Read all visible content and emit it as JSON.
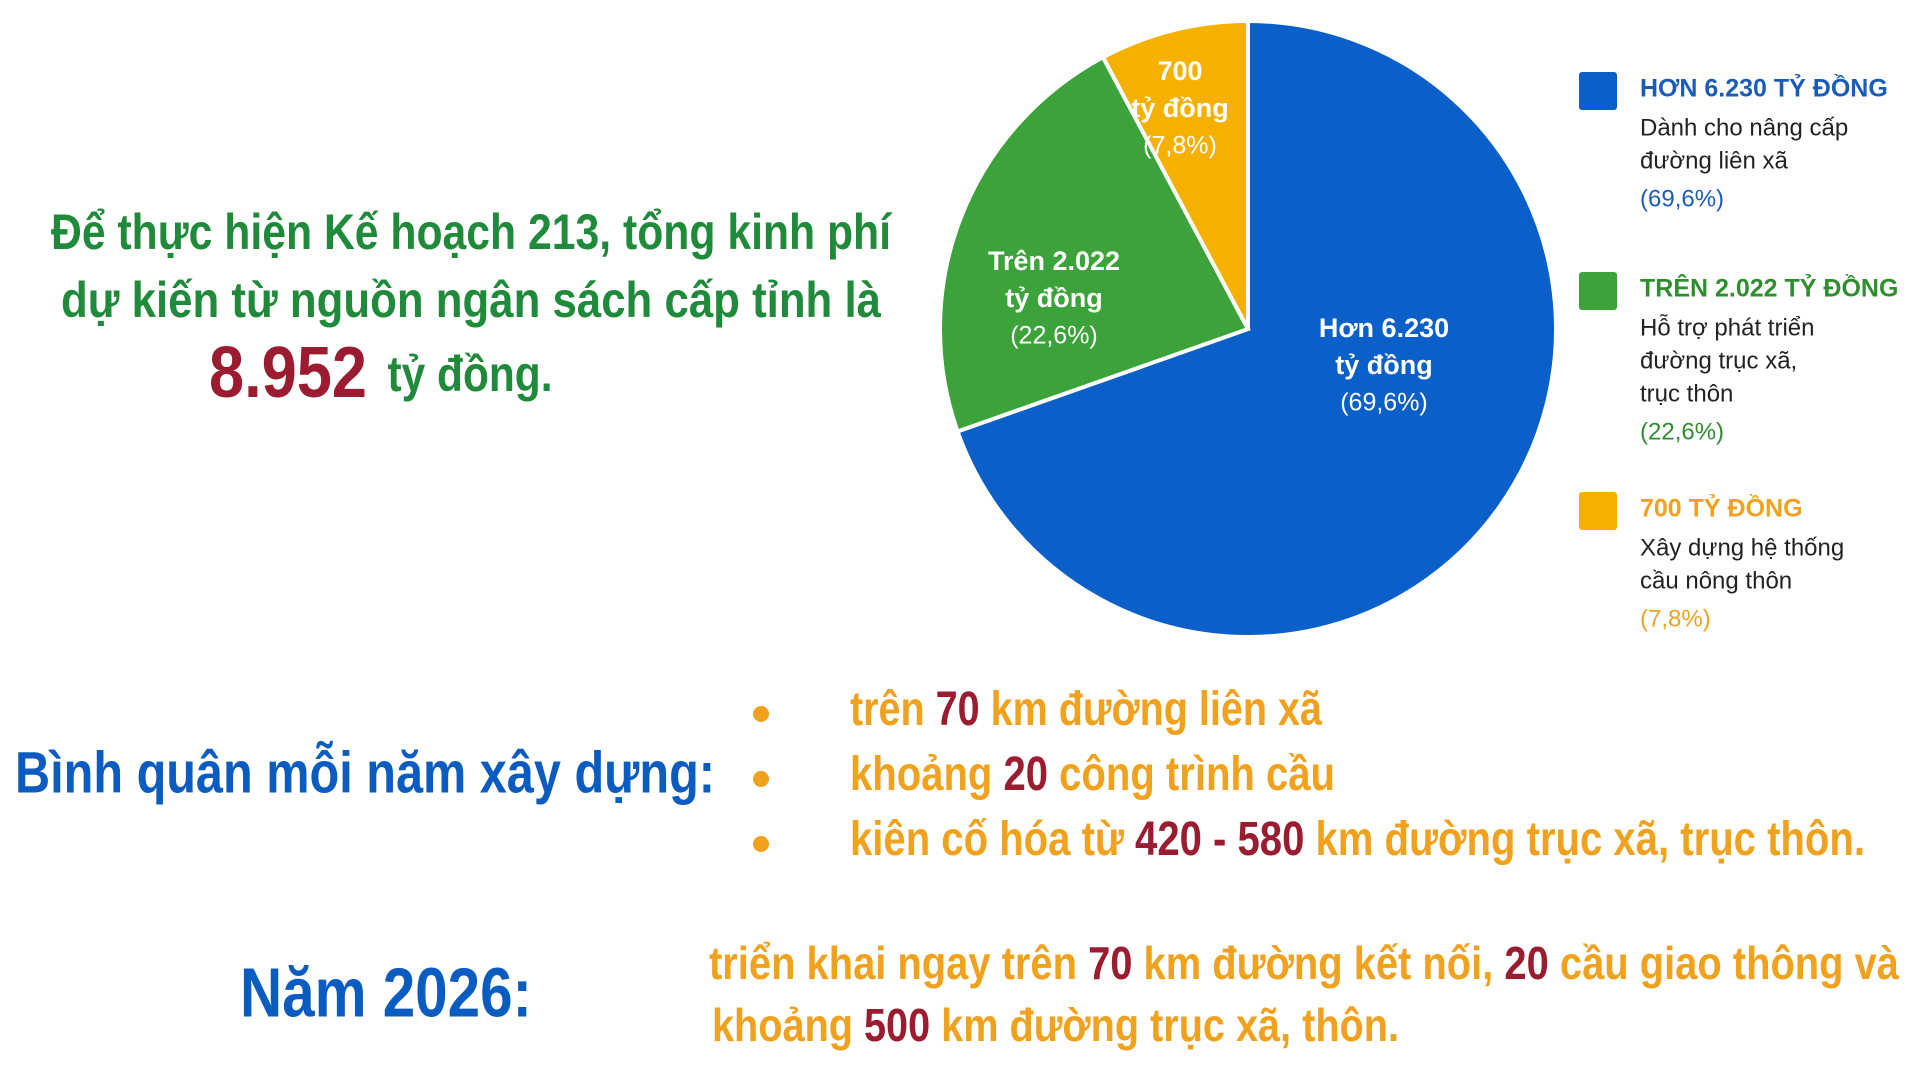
{
  "intro": {
    "line1": "Để thực hiện Kế hoạch 213, tổng kinh phí",
    "line2": "dự kiến từ nguồn ngân sách cấp tỉnh là",
    "amount": "8.952",
    "unit": "tỷ đồng."
  },
  "chart_data": {
    "type": "pie",
    "categories": [
      "HƠN 6.230 TỶ ĐỒNG",
      "TRÊN 2.022 TỶ ĐỒNG",
      "700 TỶ ĐỒNG"
    ],
    "values": [
      69.6,
      22.6,
      7.8
    ],
    "value_labels": [
      "(69,6%)",
      "(22,6%)",
      "(7,8%)"
    ],
    "colors": [
      "#0a5fc8",
      "#3ca33a",
      "#f5b000"
    ],
    "slice_labels": [
      [
        "Hơn 6.230",
        "tỷ đồng"
      ],
      [
        "Trên 2.022",
        "tỷ đồng"
      ],
      [
        "700",
        "tỷ đồng"
      ]
    ],
    "descriptions": [
      [
        "Dành cho nâng cấp",
        "đường liên xã"
      ],
      [
        "Hỗ trợ phát triển",
        "đường trục xã,",
        "trục thôn"
      ],
      [
        "Xây dựng hệ thống",
        "cầu nông thôn"
      ]
    ],
    "legend_title_colors": [
      "#1a5cb8",
      "#2f8f2f",
      "#f0a21e"
    ]
  },
  "yearly": {
    "heading": "Bình quân mỗi năm xây dựng:",
    "bullets": [
      [
        "trên ",
        "70",
        " km đường liên xã"
      ],
      [
        "khoảng ",
        "20",
        " công trình cầu"
      ],
      [
        "kiên cố hóa từ ",
        "420 - 580",
        " km đường trục xã, trục thôn."
      ]
    ]
  },
  "year2026": {
    "heading": "Năm 2026:",
    "lines": [
      [
        "triển khai ngay trên ",
        "70",
        " km đường kết nối, ",
        "20",
        " cầu giao thông và"
      ],
      [
        "khoảng ",
        "500",
        " km đường trục xã, thôn."
      ]
    ]
  }
}
